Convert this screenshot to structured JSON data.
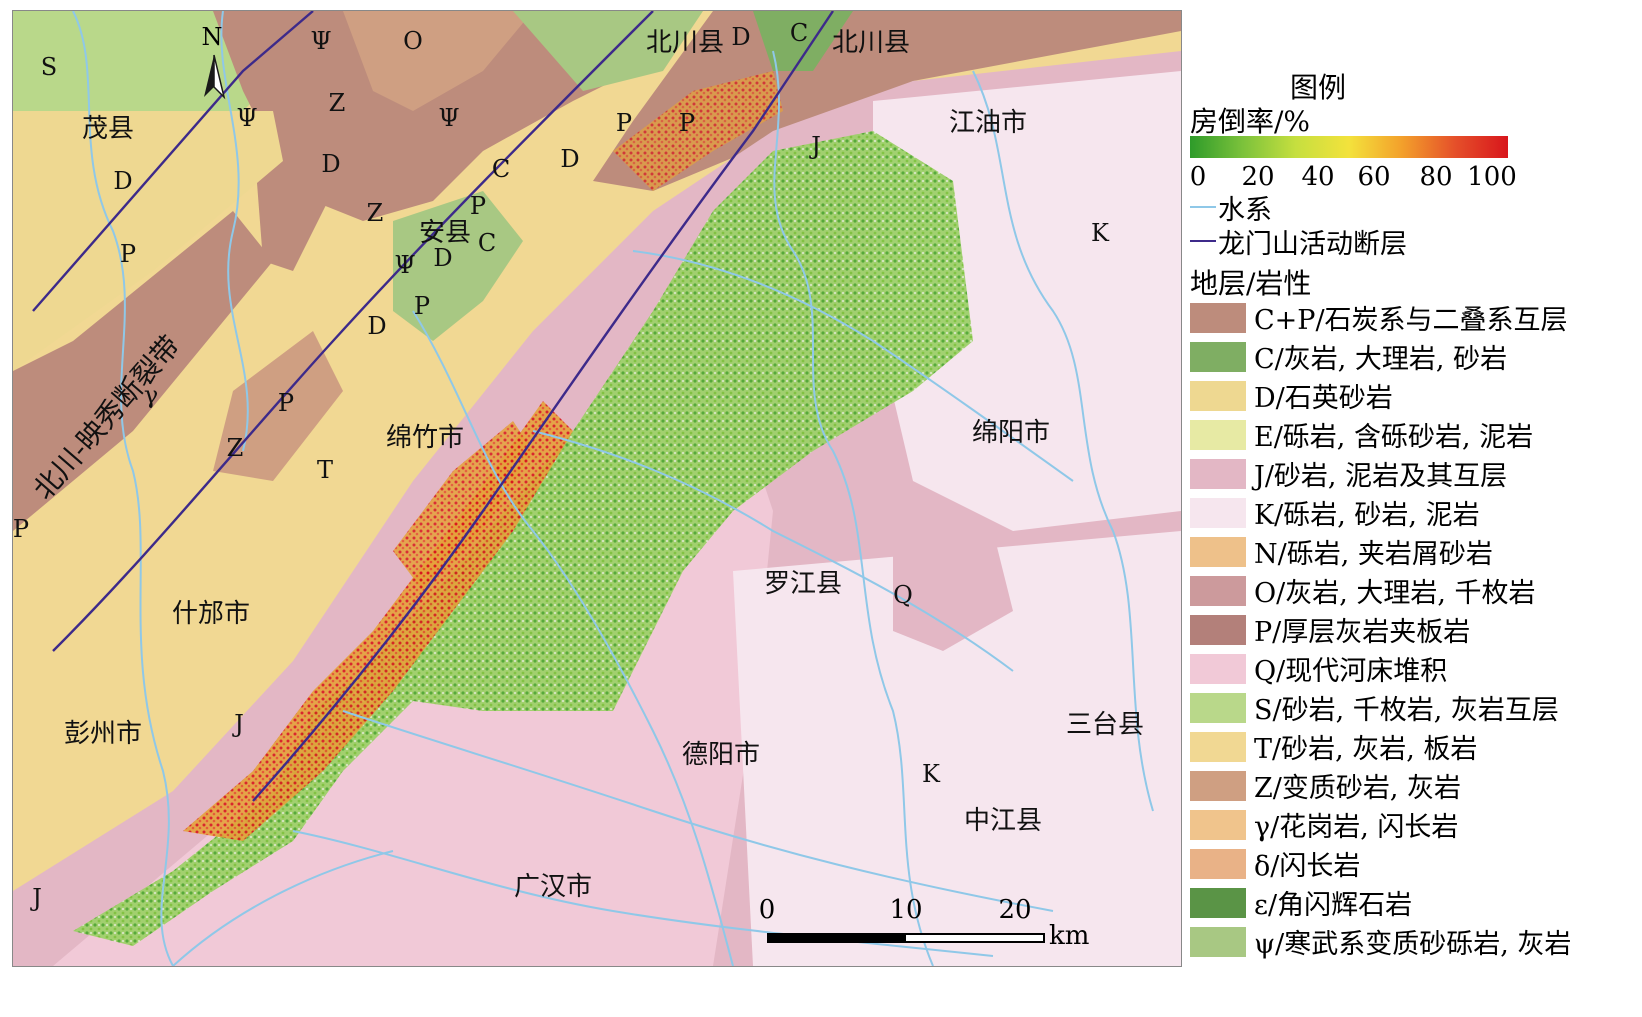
{
  "map": {
    "north_letter": "N",
    "fault_name": "北川-映秀断裂带",
    "places": [
      {
        "name": "茂县"
      },
      {
        "name": "北川县"
      },
      {
        "name": "北川县"
      },
      {
        "name": "江油市"
      },
      {
        "name": "安县"
      },
      {
        "name": "绵竹市"
      },
      {
        "name": "绵阳市"
      },
      {
        "name": "什邡市"
      },
      {
        "name": "罗江县"
      },
      {
        "name": "彭州市"
      },
      {
        "name": "德阳市"
      },
      {
        "name": "三台县"
      },
      {
        "name": "中江县"
      },
      {
        "name": "广汉市"
      }
    ],
    "unit_labels": [
      "S",
      "Ψ",
      "O",
      "Ψ",
      "Z",
      "Ψ",
      "D",
      "D",
      "C",
      "D",
      "P",
      "P",
      "Z",
      "P",
      "C",
      "P",
      "Ψ",
      "D",
      "P",
      "D",
      "γ",
      "P",
      "Z",
      "T",
      "P",
      "J",
      "J",
      "J",
      "K",
      "Q",
      "K",
      "D",
      "C"
    ],
    "scale": {
      "ticks": [
        "0",
        "10",
        "20"
      ],
      "unit": "km"
    }
  },
  "legend": {
    "title": "图例",
    "rate_label": "房倒率/%",
    "ramp_colors": [
      "#2e9b2a",
      "#7cc23b",
      "#c6df3f",
      "#f3e23c",
      "#f3a02b",
      "#e5502a",
      "#d8161c"
    ],
    "ramp_ticks": [
      "0",
      "20",
      "40",
      "60",
      "80",
      "100"
    ],
    "water_label": "水系",
    "water_color": "#8fc8e8",
    "fault_label": "龙门山活动断层",
    "fault_color": "#3d2a8a",
    "strata_title": "地层/岩性",
    "strata": [
      {
        "label": "C+P/石炭系与二叠系互层",
        "color": "#bd8c7c"
      },
      {
        "label": "C/灰岩, 大理岩, 砂岩",
        "color": "#7fae63"
      },
      {
        "label": "D/石英砂岩",
        "color": "#eed891"
      },
      {
        "label": "E/砾岩, 含砾砂岩, 泥岩",
        "color": "#e7eaa4"
      },
      {
        "label": "J/砂岩, 泥岩及其互层",
        "color": "#e3b7c5"
      },
      {
        "label": "K/砾岩, 砂岩, 泥岩",
        "color": "#f6e6ee"
      },
      {
        "label": "N/砾岩, 夹岩屑砂岩",
        "color": "#eec18a"
      },
      {
        "label": "O/灰岩, 大理岩, 千枚岩",
        "color": "#cc9a9c"
      },
      {
        "label": "P/厚层灰岩夹板岩",
        "color": "#b3807a"
      },
      {
        "label": "Q/现代河床堆积",
        "color": "#f1c9d7"
      },
      {
        "label": "S/砂岩, 千枚岩, 灰岩互层",
        "color": "#b9d88a"
      },
      {
        "label": "T/砂岩, 灰岩, 板岩",
        "color": "#f1d893"
      },
      {
        "label": "Z/变质砂岩, 灰岩",
        "color": "#cf9f82"
      },
      {
        "label": "γ/花岗岩, 闪长岩",
        "color": "#f0c48c"
      },
      {
        "label": "δ/闪长岩",
        "color": "#e9b287"
      },
      {
        "label": "ε/角闪辉石岩",
        "color": "#5a9446"
      },
      {
        "label": "ψ/寒武系变质砂砾岩, 灰岩",
        "color": "#a8c883"
      }
    ]
  }
}
